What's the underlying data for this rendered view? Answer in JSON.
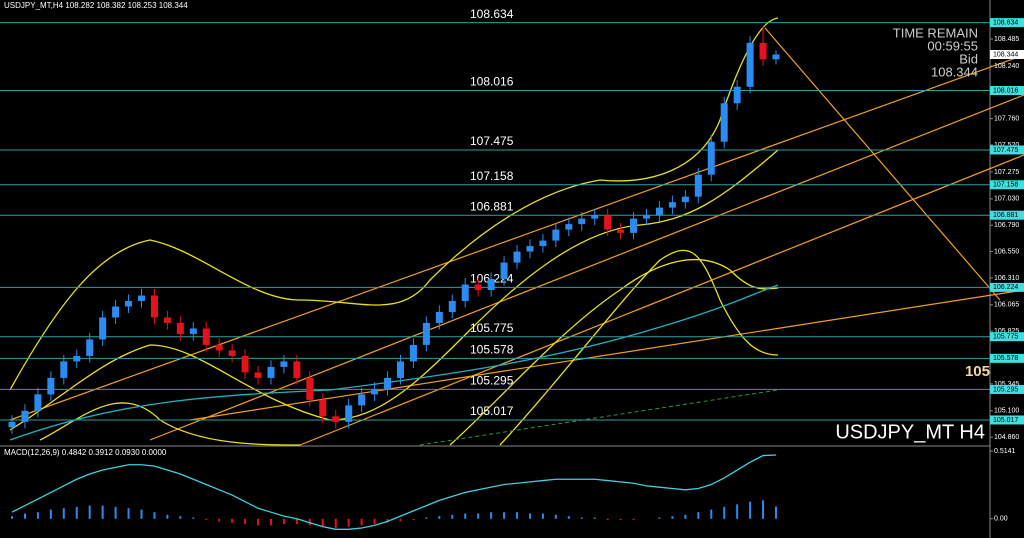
{
  "chart_data": {
    "type": "candlestick",
    "header": "USDJPY_MT,H4  108.282 108.382 108.253 108.344",
    "symbol_label": "USDJPY_MT H4",
    "edge_label": "105",
    "timer": {
      "title": "TIME REMAIN",
      "time": "00:59:55",
      "bid_label": "Bid",
      "bid": 108.344
    },
    "ylim": [
      104.78,
      108.84
    ],
    "yticks": [
      108.485,
      {
        "value": 108.24,
        "label": "108.240"
      },
      {
        "value": 107.76,
        "label": "107.760"
      },
      {
        "value": 107.52,
        "label": "107.520"
      },
      107.275,
      {
        "value": 107.03,
        "label": "107.030"
      },
      {
        "value": 106.79,
        "label": "106.790"
      },
      {
        "value": 106.55,
        "label": "106.550"
      },
      {
        "value": 106.31,
        "label": "106.310"
      },
      106.065,
      105.825,
      105.345,
      {
        "value": 105.1,
        "label": "105.100"
      },
      {
        "value": 104.86,
        "label": "104.860"
      }
    ],
    "levels": [
      108.634,
      108.016,
      107.475,
      107.158,
      106.881,
      106.224,
      105.775,
      105.578,
      105.295,
      105.017
    ],
    "level_color": "#2f9f9f",
    "up_color": "#2a8cf0",
    "down_color": "#e3121c",
    "series": {
      "open": [
        104.95,
        105.0,
        105.1,
        105.25,
        105.4,
        105.55,
        105.6,
        105.75,
        105.95,
        106.05,
        106.1,
        106.15,
        105.95,
        105.9,
        105.8,
        105.85,
        105.7,
        105.65,
        105.6,
        105.45,
        105.4,
        105.5,
        105.55,
        105.4,
        105.2,
        105.05,
        105.0,
        105.15,
        105.25,
        105.3,
        105.4,
        105.55,
        105.7,
        105.9,
        106.0,
        106.1,
        106.25,
        106.2,
        106.3,
        106.45,
        106.55,
        106.6,
        106.65,
        106.75,
        106.8,
        106.85,
        106.88,
        106.75,
        106.72,
        106.85,
        106.88,
        106.95,
        107.0,
        107.05,
        107.25,
        107.55,
        107.9,
        108.05,
        108.45,
        108.3
      ],
      "high": [
        105.06,
        105.16,
        105.31,
        105.46,
        105.61,
        105.66,
        105.81,
        106.01,
        106.11,
        106.16,
        106.21,
        106.21,
        106.01,
        105.96,
        105.91,
        105.91,
        105.76,
        105.71,
        105.66,
        105.51,
        105.56,
        105.61,
        105.61,
        105.46,
        105.26,
        105.11,
        105.21,
        105.31,
        105.36,
        105.46,
        105.61,
        105.76,
        105.96,
        106.06,
        106.16,
        106.31,
        106.31,
        106.36,
        106.51,
        106.61,
        106.66,
        106.71,
        106.81,
        106.86,
        106.91,
        106.94,
        106.94,
        106.81,
        106.91,
        106.94,
        107.01,
        107.06,
        107.11,
        107.31,
        107.61,
        107.96,
        108.11,
        108.51,
        108.6,
        108.382
      ],
      "low": [
        104.89,
        104.94,
        105.04,
        105.19,
        105.34,
        105.49,
        105.54,
        105.69,
        105.89,
        105.99,
        106.04,
        105.89,
        105.84,
        105.74,
        105.74,
        105.64,
        105.59,
        105.54,
        105.39,
        105.34,
        105.34,
        105.44,
        105.34,
        105.14,
        104.99,
        104.94,
        104.94,
        105.09,
        105.19,
        105.24,
        105.34,
        105.49,
        105.64,
        105.84,
        105.94,
        106.04,
        106.14,
        106.14,
        106.24,
        106.39,
        106.49,
        106.54,
        106.59,
        106.69,
        106.74,
        106.79,
        106.69,
        106.66,
        106.66,
        106.79,
        106.82,
        106.89,
        106.94,
        106.99,
        107.19,
        107.49,
        107.84,
        107.99,
        108.24,
        108.253
      ],
      "close": [
        105.0,
        105.1,
        105.25,
        105.4,
        105.55,
        105.6,
        105.75,
        105.95,
        106.05,
        106.1,
        106.15,
        105.95,
        105.9,
        105.8,
        105.85,
        105.7,
        105.65,
        105.6,
        105.45,
        105.4,
        105.5,
        105.55,
        105.4,
        105.2,
        105.05,
        105.0,
        105.15,
        105.25,
        105.3,
        105.4,
        105.55,
        105.7,
        105.9,
        106.0,
        106.1,
        106.25,
        106.2,
        106.3,
        106.45,
        106.55,
        106.6,
        106.65,
        106.75,
        106.8,
        106.85,
        106.88,
        106.75,
        106.72,
        106.85,
        106.88,
        106.95,
        107.0,
        107.05,
        107.25,
        107.55,
        107.9,
        108.05,
        108.45,
        108.3,
        108.344
      ]
    },
    "macd": {
      "label": "MACD(12,26,9) 0.4842 0.3912 0.0930 0.0000",
      "ylim": [
        -0.146,
        0.545
      ],
      "yticks": [
        0.5141,
        {
          "value": 0,
          "label": "0.00"
        }
      ],
      "line_color": "#40d0e0",
      "histogram": [
        0.02,
        0.04,
        0.05,
        0.07,
        0.08,
        0.09,
        0.1,
        0.1,
        0.09,
        0.08,
        0.07,
        0.05,
        0.03,
        0.02,
        0.01,
        -0.01,
        -0.02,
        -0.03,
        -0.04,
        -0.05,
        -0.05,
        -0.04,
        -0.04,
        -0.05,
        -0.06,
        -0.07,
        -0.06,
        -0.05,
        -0.04,
        -0.03,
        -0.02,
        -0.01,
        0.01,
        0.02,
        0.03,
        0.04,
        0.04,
        0.05,
        0.05,
        0.05,
        0.04,
        0.04,
        0.03,
        0.02,
        0.01,
        0.01,
        -0.01,
        -0.01,
        -0.01,
        0.0,
        0.01,
        0.02,
        0.03,
        0.05,
        0.07,
        0.09,
        0.11,
        0.13,
        0.14,
        0.093
      ],
      "line": [
        0.05,
        0.1,
        0.15,
        0.2,
        0.25,
        0.3,
        0.34,
        0.37,
        0.39,
        0.41,
        0.41,
        0.4,
        0.37,
        0.34,
        0.3,
        0.26,
        0.22,
        0.18,
        0.13,
        0.08,
        0.05,
        0.02,
        0.0,
        -0.03,
        -0.06,
        -0.08,
        -0.08,
        -0.07,
        -0.05,
        -0.02,
        0.02,
        0.06,
        0.1,
        0.14,
        0.17,
        0.2,
        0.22,
        0.24,
        0.26,
        0.27,
        0.28,
        0.29,
        0.3,
        0.3,
        0.3,
        0.3,
        0.29,
        0.28,
        0.27,
        0.25,
        0.24,
        0.23,
        0.22,
        0.23,
        0.26,
        0.31,
        0.37,
        0.43,
        0.48,
        0.4842
      ]
    }
  }
}
